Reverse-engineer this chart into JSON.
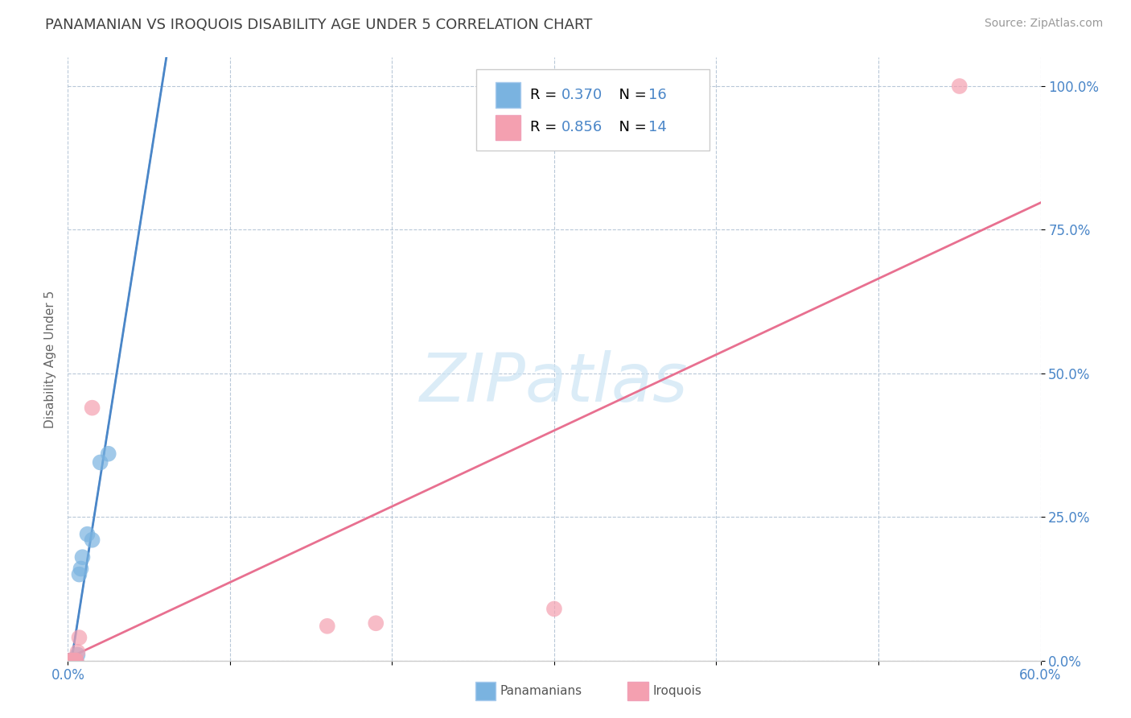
{
  "title": "PANAMANIAN VS IROQUOIS DISABILITY AGE UNDER 5 CORRELATION CHART",
  "source": "Source: ZipAtlas.com",
  "ylabel": "Disability Age Under 5",
  "xlabel": "",
  "xlim": [
    0.0,
    0.6
  ],
  "ylim": [
    0.0,
    1.05
  ],
  "xtick_vals": [
    0.0,
    0.1,
    0.2,
    0.3,
    0.4,
    0.5,
    0.6
  ],
  "ytick_vals": [
    0.0,
    0.25,
    0.5,
    0.75,
    1.0
  ],
  "ytick_labels": [
    "0.0%",
    "25.0%",
    "50.0%",
    "75.0%",
    "100.0%"
  ],
  "xtick_labels": [
    "0.0%",
    "",
    "",
    "",
    "",
    "",
    "60.0%"
  ],
  "watermark": "ZIPatlas",
  "panamanian_x": [
    0.001,
    0.002,
    0.002,
    0.003,
    0.003,
    0.004,
    0.005,
    0.005,
    0.006,
    0.007,
    0.008,
    0.009,
    0.012,
    0.015,
    0.02,
    0.025
  ],
  "panamanian_y": [
    0.0,
    0.0,
    0.0,
    0.0,
    0.0,
    0.0,
    0.0,
    0.0,
    0.01,
    0.15,
    0.16,
    0.18,
    0.22,
    0.21,
    0.345,
    0.36
  ],
  "iroquois_x": [
    0.001,
    0.002,
    0.003,
    0.003,
    0.004,
    0.005,
    0.005,
    0.006,
    0.007,
    0.015,
    0.16,
    0.19,
    0.3,
    0.55
  ],
  "iroquois_y": [
    0.0,
    0.0,
    0.0,
    0.0,
    0.0,
    0.0,
    0.0,
    0.015,
    0.04,
    0.44,
    0.06,
    0.065,
    0.09,
    1.0
  ],
  "pan_R": 0.37,
  "pan_N": 16,
  "iro_R": 0.856,
  "iro_N": 14,
  "pan_color": "#7ab3e0",
  "iro_color": "#f4a0b0",
  "pan_line_color": "#4a86c8",
  "iro_line_color": "#e87090",
  "pan_dash_color": "#93b8d8",
  "grid_color": "#b8c8d8",
  "title_color": "#404040",
  "axis_label_color": "#4a86c8",
  "legend_text_color": "#000000",
  "legend_val_color": "#4a86c8",
  "source_color": "#999999",
  "background_color": "#ffffff",
  "watermark_color": "#cde5f5"
}
